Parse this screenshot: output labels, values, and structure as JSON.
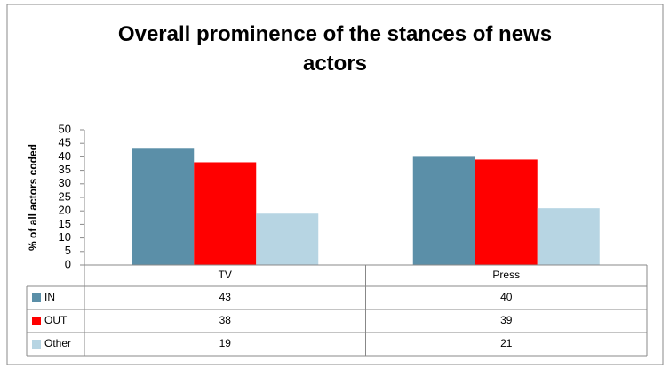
{
  "chart_data": {
    "type": "bar",
    "title": "Overall prominence of the stances of news actors",
    "ylabel": "% of all actors coded",
    "categories": [
      "TV",
      "Press"
    ],
    "series": [
      {
        "name": "IN",
        "color": "#5b8fa8",
        "values": [
          43,
          40
        ]
      },
      {
        "name": "OUT",
        "color": "#ff0000",
        "values": [
          38,
          39
        ]
      },
      {
        "name": "Other",
        "color": "#b7d5e3",
        "values": [
          19,
          21
        ]
      }
    ],
    "ylim": [
      0,
      50
    ],
    "yticks": [
      0,
      5,
      10,
      15,
      20,
      25,
      30,
      35,
      40,
      45,
      50
    ],
    "grid": false
  }
}
